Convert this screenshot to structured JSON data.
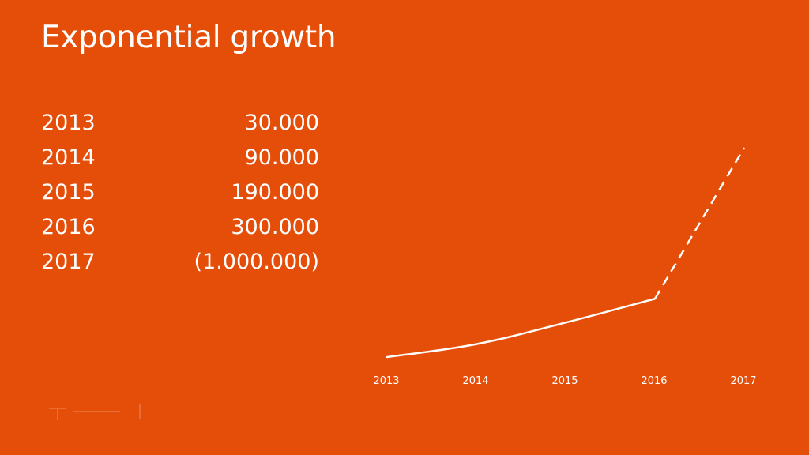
{
  "title": "Exponential growth",
  "table": {
    "rows": [
      {
        "year": "2013",
        "value": "30.000"
      },
      {
        "year": "2014",
        "value": "90.000"
      },
      {
        "year": "2015",
        "value": "190.000"
      },
      {
        "year": "2016",
        "value": "300.000"
      },
      {
        "year": "2017",
        "value": "(1.000.000)"
      }
    ]
  },
  "colors": {
    "background": "#E54E09",
    "foreground": "#FFFFFF"
  },
  "chart_data": {
    "type": "line",
    "categories": [
      "2013",
      "2014",
      "2015",
      "2016",
      "2017"
    ],
    "series": [
      {
        "values": [
          30000,
          90000,
          190000,
          300000,
          1000000
        ]
      }
    ],
    "projected_from_index": 3,
    "y_axis_visible": false,
    "grid": false,
    "legend": "none"
  }
}
